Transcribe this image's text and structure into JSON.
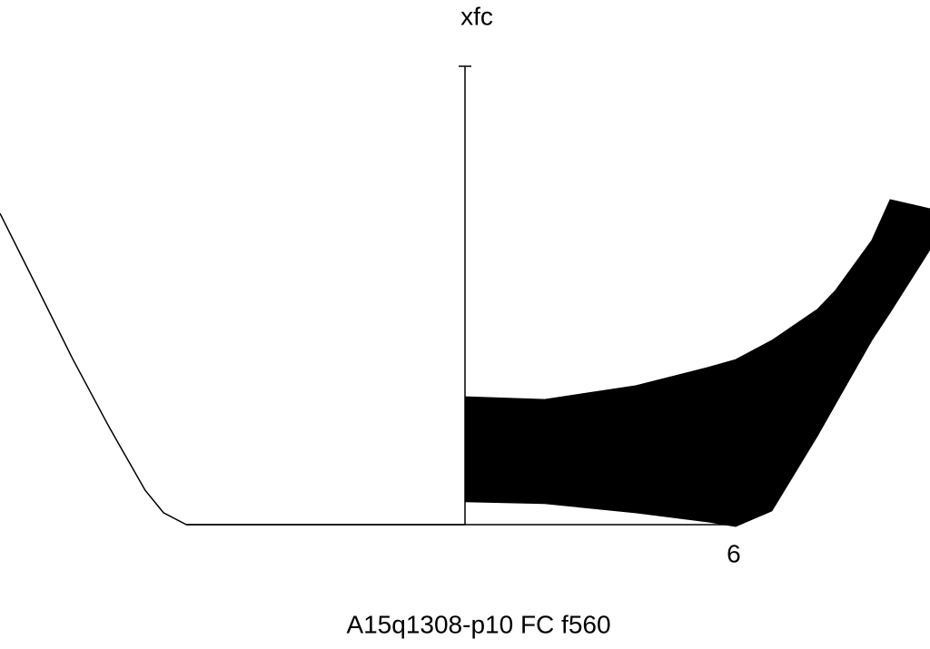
{
  "chart_data": {
    "type": "area",
    "title": "A15q1308-p10 FC f560",
    "ylabel": "xfc",
    "xlim": [
      -10.38,
      10.38
    ],
    "ylim": [
      0,
      1
    ],
    "xticks": [
      6
    ],
    "series": [
      {
        "style": "line",
        "color": "#000000",
        "x": [
          -10.38,
          -9.57,
          -8.76,
          -7.95,
          -7.14,
          -6.73,
          -6.22,
          0
        ],
        "values": [
          0.679,
          0.521,
          0.362,
          0.214,
          0.075,
          0.026,
          0,
          0
        ]
      },
      {
        "style": "band",
        "color": "#000000",
        "x": [
          0,
          1.78,
          3.81,
          5.43,
          6.04,
          6.85,
          7.87,
          8.27,
          9.08,
          9.49,
          10.38
        ],
        "values": [
          0.279,
          0.273,
          0.303,
          0.343,
          0.36,
          0.402,
          0.47,
          0.511,
          0.62,
          0.709,
          0.689
        ],
        "lower": [
          0.05,
          0.046,
          0.026,
          0.006,
          -0.004,
          0.03,
          0.194,
          0.263,
          0.402,
          0.463,
          0.6
        ]
      }
    ]
  }
}
